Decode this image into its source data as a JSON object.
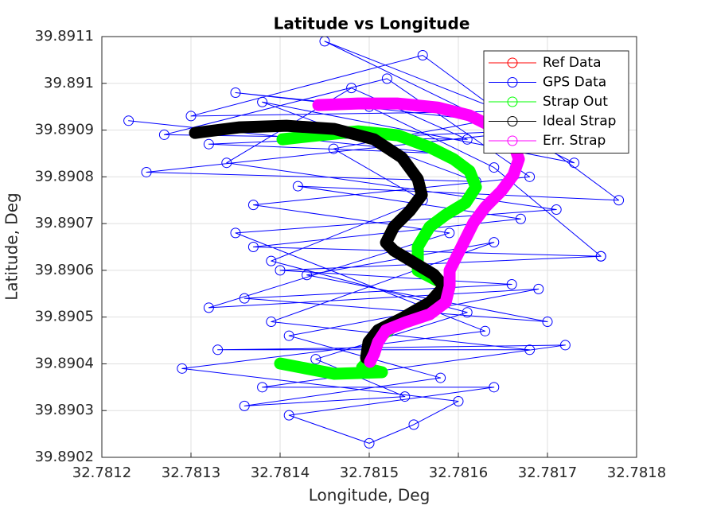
{
  "chart_data": {
    "type": "line",
    "title": "Latitude vs Longitude",
    "xlabel": "Longitude, Deg",
    "ylabel": "Latitude, Deg",
    "xlim": [
      32.7812,
      32.7818
    ],
    "xticks": [
      32.7812,
      32.7813,
      32.7814,
      32.7815,
      32.7816,
      32.7817,
      32.7818
    ],
    "ylim": [
      39.8902,
      39.8911
    ],
    "yticks": [
      39.8902,
      39.8903,
      39.8904,
      39.8905,
      39.8906,
      39.8907,
      39.8908,
      39.8909,
      39.891,
      39.8911
    ],
    "grid": true,
    "legend": "northeast",
    "series": [
      {
        "name": "Ref Data",
        "color": "#ff0000",
        "x": [],
        "values": []
      },
      {
        "name": "GPS Data",
        "color": "#0000ff",
        "x": [
          32.78123,
          32.78158,
          32.78132,
          32.78169,
          32.78125,
          32.78162,
          32.78138,
          32.78173,
          32.78145,
          32.78165,
          32.7813,
          32.78156,
          32.78178,
          32.78142,
          32.78167,
          32.78137,
          32.78176,
          32.7814,
          32.78166,
          32.78136,
          32.7817,
          32.78143,
          32.78164,
          32.78139,
          32.78168,
          32.78133,
          32.78172,
          32.78138,
          32.78164,
          32.78141,
          32.7815,
          32.78155,
          32.7816,
          32.78129,
          32.78163,
          32.78135,
          32.78171,
          32.78134,
          32.78148,
          32.78161,
          32.78127,
          32.78152,
          32.78168,
          32.78137,
          32.78159,
          32.78132,
          32.78169,
          32.78141,
          32.78158,
          32.78136,
          32.78154,
          32.78144,
          32.78161,
          32.78139,
          32.78156,
          32.78146,
          32.78163,
          32.78135,
          32.7815,
          32.78164,
          32.78176
        ],
        "values": [
          39.89092,
          39.89085,
          39.89087,
          39.8909,
          39.89081,
          39.89079,
          39.89096,
          39.89083,
          39.89109,
          39.89094,
          39.89093,
          39.89106,
          39.89075,
          39.89078,
          39.89071,
          39.89065,
          39.89063,
          39.8906,
          39.89057,
          39.89054,
          39.89049,
          39.89059,
          39.89066,
          39.89049,
          39.89043,
          39.89043,
          39.89044,
          39.89035,
          39.89035,
          39.89029,
          39.89023,
          39.89027,
          39.89032,
          39.89039,
          39.89047,
          39.89068,
          39.89073,
          39.89083,
          39.89099,
          39.89088,
          39.89089,
          39.89101,
          39.8908,
          39.89074,
          39.89068,
          39.89052,
          39.89056,
          39.89046,
          39.89037,
          39.89031,
          39.89033,
          39.89041,
          39.89051,
          39.89062,
          39.89075,
          39.89086,
          39.89092,
          39.89098,
          39.89095,
          39.89082,
          39.89063
        ]
      },
      {
        "name": "Strap Out",
        "color": "#00ff00",
        "x": [
          32.7814027,
          32.7814429,
          32.7814875,
          32.7815322,
          32.7815679,
          32.7815947,
          32.7816126,
          32.7816197,
          32.7816081,
          32.7815858,
          32.7815679,
          32.7815545,
          32.7815545,
          32.7815751,
          32.7815902,
          32.7815858,
          32.781559,
          32.7815277,
          32.7815099,
          32.7815054,
          32.781492,
          32.7815143,
          32.7814608,
          32.7814
        ],
        "values": [
          39.8908803,
          39.8908888,
          39.8908973,
          39.8908888,
          39.8908633,
          39.8908378,
          39.8908123,
          39.8907782,
          39.8907442,
          39.8907187,
          39.8906932,
          39.8906507,
          39.8905997,
          39.8905793,
          39.8905656,
          39.8905401,
          39.8905061,
          39.8904806,
          39.8904551,
          39.8904211,
          39.8903922,
          39.890382,
          39.8903786,
          39.8904007
        ]
      },
      {
        "name": "Ideal Strap",
        "color": "#000000",
        "x": [
          32.7813045,
          32.7813536,
          32.7814072,
          32.7814608,
          32.7815054,
          32.7815367,
          32.7815545,
          32.781559,
          32.7815456,
          32.7815277,
          32.7815188,
          32.7815277,
          32.7815501,
          32.7815724,
          32.781584,
          32.7815679,
          32.7815367,
          32.7815099,
          32.7814992,
          32.7814965
        ],
        "values": [
          39.8908939,
          39.8909058,
          39.8909092,
          39.8909024,
          39.8908803,
          39.8908412,
          39.8907952,
          39.8907612,
          39.8907272,
          39.8906932,
          39.8906592,
          39.8906422,
          39.8906167,
          39.8905912,
          39.8905656,
          39.8905316,
          39.8904976,
          39.8904721,
          39.8904466,
          39.8904126
        ]
      },
      {
        "name": "Err. Strap",
        "color": "#ff00ff",
        "x": [
          32.7814429,
          32.7814875,
          32.7815322,
          32.7815768,
          32.7816126,
          32.7816394,
          32.7816617,
          32.7816679,
          32.7816617,
          32.7816483,
          32.7816304,
          32.781617,
          32.7816081,
          32.7815992,
          32.7815902,
          32.7815902,
          32.7815858,
          32.7815679,
          32.7815411,
          32.7815188,
          32.7815099,
          32.7815054,
          32.7815009
        ],
        "values": [
          39.8909534,
          39.8909568,
          39.8909568,
          39.8909483,
          39.8909313,
          39.8909058,
          39.8908718,
          39.8908378,
          39.8908037,
          39.8907697,
          39.8907357,
          39.8907017,
          39.8906677,
          39.8906337,
          39.8905997,
          39.8905656,
          39.8905316,
          39.8905061,
          39.8904891,
          39.8904721,
          39.8904466,
          39.8904211,
          39.8904041
        ]
      }
    ]
  }
}
